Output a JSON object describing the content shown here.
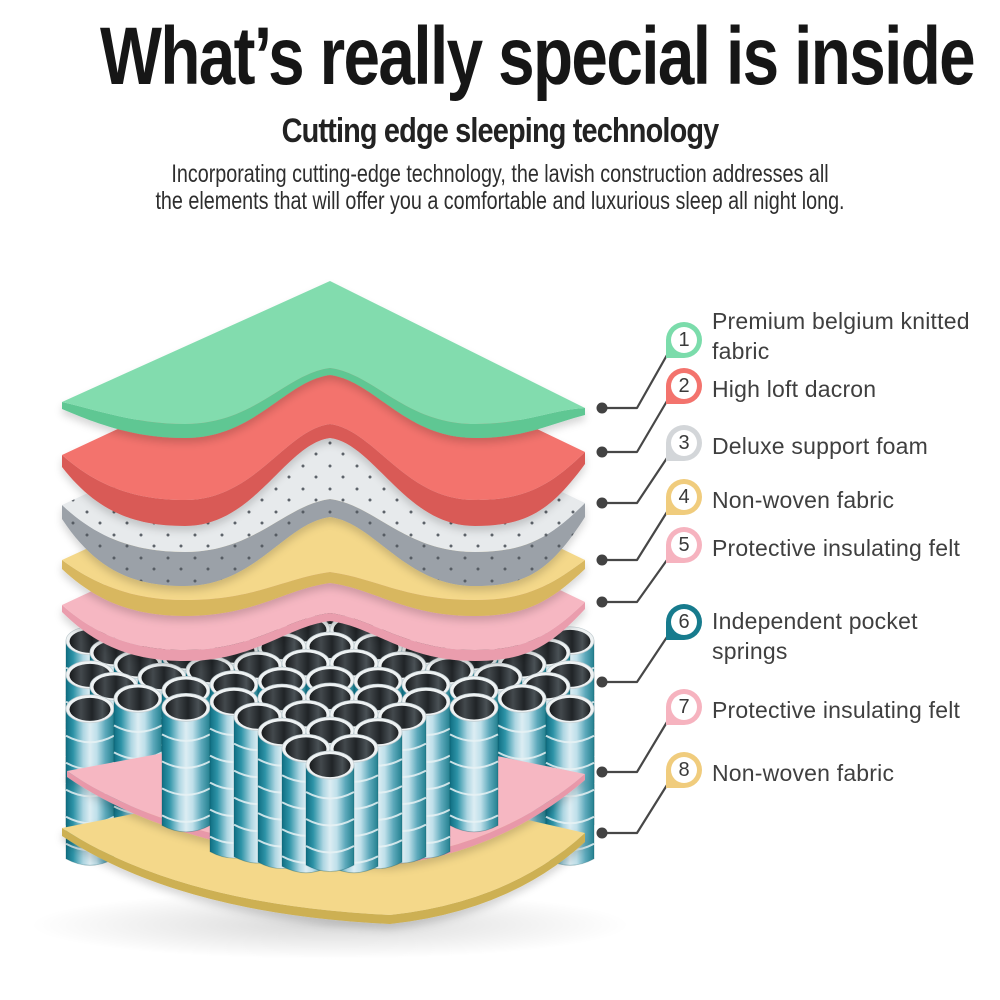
{
  "header": {
    "title": "What’s really special is inside",
    "subtitle": "Cutting edge sleeping technology",
    "description_lines": [
      "Incorporating cutting-edge technology, the lavish construction addresses all",
      "the elements that will offer you a comfortable and luxurious sleep all night long."
    ]
  },
  "labels": [
    {
      "number": "1",
      "lines": [
        "Premium belgium knitted",
        "fabric"
      ],
      "color": "#7bdcab"
    },
    {
      "number": "2",
      "lines": [
        "High loft dacron"
      ],
      "color": "#f3736d"
    },
    {
      "number": "3",
      "lines": [
        "Deluxe support foam"
      ],
      "color": "#d3d6d9"
    },
    {
      "number": "4",
      "lines": [
        "Non-woven fabric"
      ],
      "color": "#f0cc7d"
    },
    {
      "number": "5",
      "lines": [
        "Protective insulating felt"
      ],
      "color": "#f6b3bf"
    },
    {
      "number": "6",
      "lines": [
        "Independent pocket",
        "springs"
      ],
      "color": "#177b8d"
    },
    {
      "number": "7",
      "lines": [
        "Protective insulating felt"
      ],
      "color": "#f6b3bf"
    },
    {
      "number": "8",
      "lines": [
        "Non-woven fabric"
      ],
      "color": "#f0cc7d"
    }
  ],
  "diagram": {
    "layers": [
      {
        "name": "premium-belgium-knitted-fabric",
        "top": "#82dcae",
        "side": "#5ec793"
      },
      {
        "name": "high-loft-dacron",
        "top": "#f3736d",
        "side": "#d95a57"
      },
      {
        "name": "deluxe-support-foam",
        "top": "#e7eaec",
        "side": "#9ba1a8",
        "speckle": "#4e545b"
      },
      {
        "name": "non-woven-fabric-top",
        "top": "#f4d88a",
        "side": "#d8b75e"
      },
      {
        "name": "protective-insulating-felt-top",
        "top": "#f6b7c2",
        "side": "#ea9dad"
      },
      {
        "name": "protective-insulating-felt-bottom",
        "top": "#f6b7c2",
        "side": "#e898a9"
      },
      {
        "name": "non-woven-fabric-bottom",
        "top": "#f4d88a",
        "side": "#cdb052"
      }
    ],
    "springs": {
      "gradient": [
        "#0f6e82",
        "#2d93a7",
        "#aed6e2",
        "#dcedf3",
        "#bfe0ea",
        "#5da9bb",
        "#23808f"
      ],
      "rim": "#eef2f3",
      "interior": [
        "#17191b",
        "#43494d",
        "#202427",
        "#4a5156",
        "#1c1f21"
      ],
      "band": "#e8f2f5"
    },
    "connector": {
      "line": "#474747",
      "dot": "#424242"
    }
  }
}
